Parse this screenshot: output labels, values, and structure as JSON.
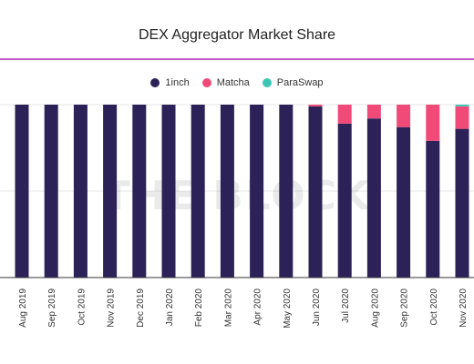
{
  "title": "DEX Aggregator Market Share",
  "watermark": "THE BLOCK",
  "colors": {
    "accent_line": "#c15ec4",
    "grid": "#e6e6e6",
    "axis": "#333333"
  },
  "chart_data": {
    "type": "bar",
    "stacked": true,
    "normalized": true,
    "title": "DEX Aggregator Market Share",
    "categories": [
      "Aug 2019",
      "Sep 2019",
      "Oct 2019",
      "Nov 2019",
      "Dec 2019",
      "Jan 2020",
      "Feb 2020",
      "Mar 2020",
      "Apr 2020",
      "May 2020",
      "Jun 2020",
      "Jul 2020",
      "Aug 2020",
      "Sep 2020",
      "Oct 2020",
      "Nov 2020"
    ],
    "series": [
      {
        "name": "1inch",
        "color": "#2c2258",
        "values": [
          100,
          100,
          100,
          100,
          100,
          100,
          100,
          100,
          100,
          100,
          99,
          89,
          92,
          87,
          79,
          86
        ]
      },
      {
        "name": "Matcha",
        "color": "#f04a78",
        "values": [
          0,
          0,
          0,
          0,
          0,
          0,
          0,
          0,
          0,
          0,
          1,
          11,
          8,
          13,
          21,
          13
        ]
      },
      {
        "name": "ParaSwap",
        "color": "#3cc7b5",
        "values": [
          0,
          0,
          0,
          0,
          0,
          0,
          0,
          0,
          0,
          0,
          0,
          0,
          0,
          0,
          0,
          1
        ]
      }
    ],
    "ylim": [
      0,
      100
    ],
    "grid": true,
    "legend_position": "top-center"
  }
}
